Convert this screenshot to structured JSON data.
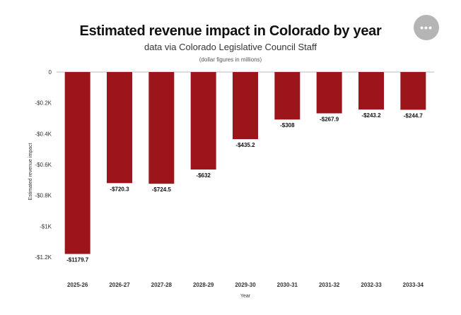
{
  "title": "Estimated revenue impact in Colorado by year",
  "subtitle": "data via Colorado Legislative Council Staff",
  "note": "(dollar figures in millions)",
  "menu": {
    "label": "•••"
  },
  "chart_data": {
    "type": "bar",
    "categories": [
      "2025-26",
      "2026-27",
      "2027-28",
      "2028-29",
      "2029-30",
      "2030-31",
      "2031-32",
      "2032-33",
      "2033-34"
    ],
    "values": [
      -1179.7,
      -720.3,
      -724.5,
      -632,
      -435.2,
      -308,
      -267.9,
      -243.2,
      -244.7
    ],
    "data_labels": [
      "-$1179.7",
      "-$720.3",
      "-$724.5",
      "-$632",
      "-$435.2",
      "-$308",
      "-$267.9",
      "-$243.2",
      "-$244.7"
    ],
    "title": "Estimated revenue impact in Colorado by year",
    "subtitle": "data via Colorado Legislative Council Staff",
    "xlabel": "Year",
    "ylabel": "Estimated revenue impact",
    "ylim": [
      -1200,
      0
    ],
    "yticks": [
      0,
      -200,
      -400,
      -600,
      -800,
      -1000,
      -1200
    ],
    "ytick_labels": [
      "0",
      "-$0.2K",
      "-$0.4K",
      "-$0.6K",
      "-$0.8K",
      "-$1K",
      "-$1.2K"
    ],
    "grid": false,
    "colors": {
      "bar": "#9b151b",
      "zero_line": "#bbbbbb"
    }
  }
}
